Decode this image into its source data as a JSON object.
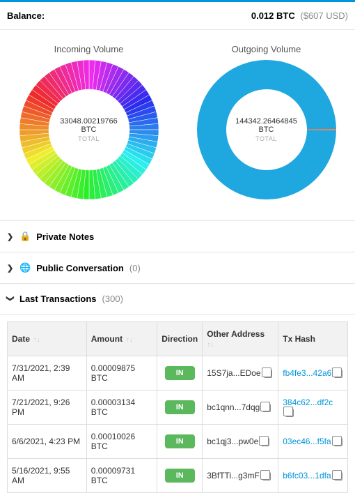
{
  "colors": {
    "accent": "#0096db",
    "badge_green": "#5cb85c",
    "lock_red": "#d43f3a",
    "border": "#e5e5e5",
    "table_header_bg": "#f2f2f2",
    "muted": "#888888"
  },
  "balance": {
    "label": "Balance:",
    "btc": "0.012 BTC",
    "usd": "($607 USD)"
  },
  "charts": {
    "incoming": {
      "title": "Incoming Volume",
      "total_text": "33048.00219766 BTC",
      "total_label": "TOTAL",
      "type": "donut",
      "outer_r": 100,
      "inner_r": 58,
      "slices": 72,
      "gap_color": "#ffffff",
      "gap_width_deg": 0.8,
      "hue_start": 300,
      "hue_end": -60,
      "saturation": 85,
      "lightness": 55
    },
    "outgoing": {
      "title": "Outgoing Volume",
      "total_text": "144342.26464845 BTC",
      "total_label": "TOTAL",
      "type": "donut",
      "outer_r": 100,
      "inner_r": 58,
      "ring_color": "#1fa8e0",
      "tick_color": "#ff7f50",
      "tick_angle_deg": 0,
      "tick_width_deg": 1.2
    }
  },
  "sections": {
    "private": {
      "label": "Private Notes",
      "icon": "lock",
      "expanded": false
    },
    "public": {
      "label": "Public Conversation",
      "count": "(0)",
      "icon": "globe",
      "expanded": false
    },
    "tx": {
      "label": "Last Transactions",
      "count": "(300)",
      "expanded": true
    }
  },
  "tx_table": {
    "columns": [
      {
        "label": "Date",
        "sortable": true
      },
      {
        "label": "Amount",
        "sortable": true
      },
      {
        "label": "Direction",
        "sortable": false
      },
      {
        "label": "Other Address",
        "sortable": true
      },
      {
        "label": "Tx Hash",
        "sortable": false
      }
    ],
    "rows": [
      {
        "date": "7/31/2021, 2:39 AM",
        "amount": "0.00009875 BTC",
        "direction": "IN",
        "other": "15S7ja...EDoe",
        "hash": "fb4fe3...42a6"
      },
      {
        "date": "7/21/2021, 9:26 PM",
        "amount": "0.00003134 BTC",
        "direction": "IN",
        "other": "bc1qnn...7dqg",
        "hash": "384c62...df2c"
      },
      {
        "date": "6/6/2021, 4:23 PM",
        "amount": "0.00010026 BTC",
        "direction": "IN",
        "other": "bc1qj3...pw0e",
        "hash": "03ec46...f5fa"
      },
      {
        "date": "5/16/2021, 9:55 AM",
        "amount": "0.00009731 BTC",
        "direction": "IN",
        "other": "3BfTTi...g3mF",
        "hash": "b6fc03...1dfa"
      }
    ]
  }
}
